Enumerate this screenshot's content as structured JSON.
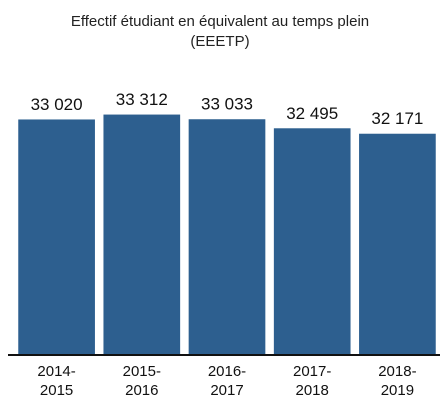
{
  "chart_data": {
    "type": "bar",
    "title": "Effectif étudiant en équivalent au temps plein (EEETP)",
    "categories": [
      "2014-2015",
      "2015-2016",
      "2016-2017",
      "2017-2018",
      "2018-2019"
    ],
    "values": [
      33020,
      33312,
      33033,
      32495,
      32171
    ],
    "value_labels": [
      "33 020",
      "33 312",
      "33 033",
      "32 495",
      "32 171"
    ],
    "color": "#2d5f8f",
    "ylim": [
      19000,
      34000
    ]
  }
}
